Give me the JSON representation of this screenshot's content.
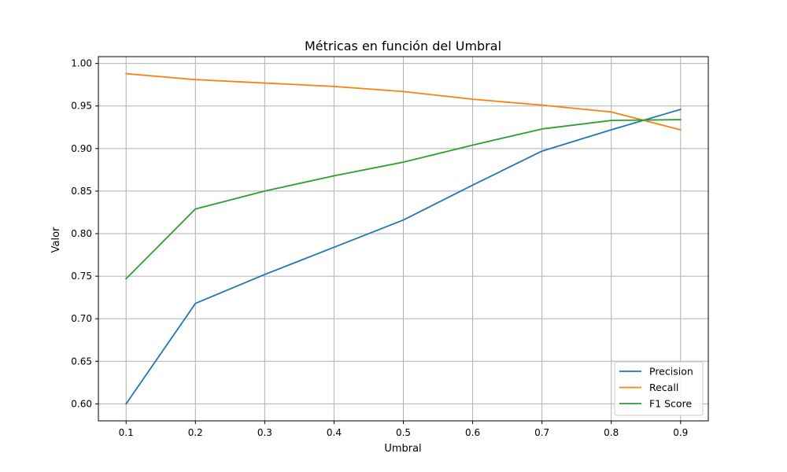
{
  "chart_data": {
    "type": "line",
    "title": "Métricas en función del Umbral",
    "xlabel": "Umbral",
    "ylabel": "Valor",
    "x": [
      0.1,
      0.2,
      0.3,
      0.4,
      0.5,
      0.6,
      0.7,
      0.8,
      0.9
    ],
    "xlim": [
      0.06,
      0.94
    ],
    "ylim": [
      0.58,
      1.008
    ],
    "x_ticks": [
      "0.1",
      "0.2",
      "0.3",
      "0.4",
      "0.5",
      "0.6",
      "0.7",
      "0.8",
      "0.9"
    ],
    "y_ticks": [
      "0.60",
      "0.65",
      "0.70",
      "0.75",
      "0.80",
      "0.85",
      "0.90",
      "0.95",
      "1.00"
    ],
    "grid": true,
    "legend_position": "lower-right",
    "series": [
      {
        "name": "Precision",
        "color": "#1f77b4",
        "values": [
          0.6,
          0.718,
          0.752,
          0.784,
          0.816,
          0.857,
          0.897,
          0.922,
          0.946
        ]
      },
      {
        "name": "Recall",
        "color": "#ff7f0e",
        "values": [
          0.988,
          0.981,
          0.977,
          0.973,
          0.967,
          0.958,
          0.951,
          0.943,
          0.922
        ]
      },
      {
        "name": "F1 Score",
        "color": "#2ca02c",
        "values": [
          0.747,
          0.829,
          0.85,
          0.868,
          0.884,
          0.904,
          0.923,
          0.933,
          0.934
        ]
      }
    ]
  }
}
